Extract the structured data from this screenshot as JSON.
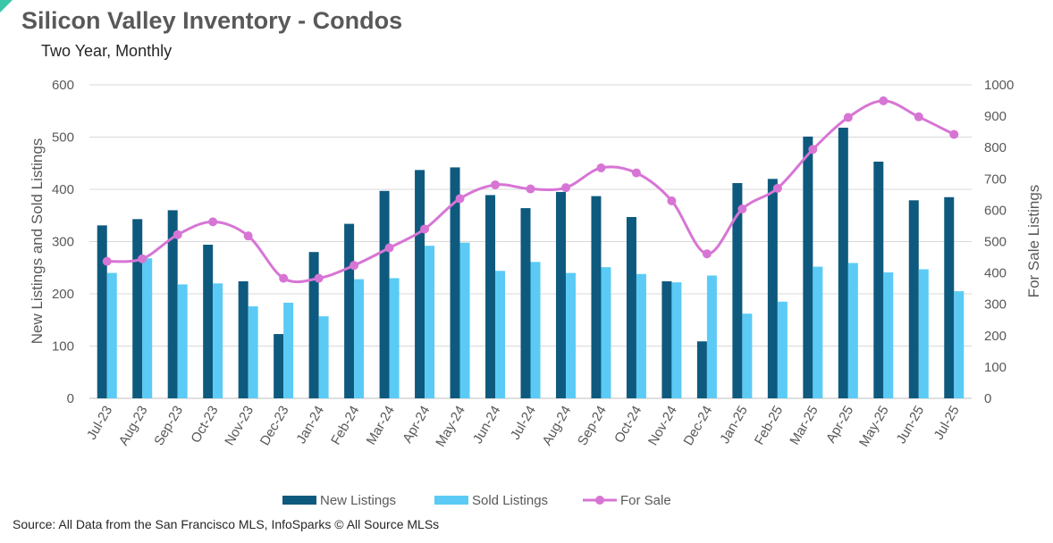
{
  "chart_data": {
    "type": "bar+line",
    "title": "Silicon Valley Inventory - Condos",
    "subtitle": "Two Year, Monthly",
    "source": "Source: All Data from the San Francisco MLS, InfoSparks © All Source MLSs",
    "categories": [
      "Jul-23",
      "Aug-23",
      "Sep-23",
      "Oct-23",
      "Nov-23",
      "Dec-23",
      "Jan-24",
      "Feb-24",
      "Mar-24",
      "Apr-24",
      "May-24",
      "Jun-24",
      "Jul-24",
      "Aug-24",
      "Sep-24",
      "Oct-24",
      "Nov-24",
      "Dec-24",
      "Jan-25",
      "Feb-25",
      "Mar-25",
      "Apr-25",
      "May-25",
      "Jun-25",
      "Jul-25"
    ],
    "y_left": {
      "label": "New Listings and Sold Listings",
      "range": [
        0,
        600
      ],
      "ticks": [
        "0",
        "100",
        "200",
        "300",
        "400",
        "500",
        "600"
      ]
    },
    "y_right": {
      "label": "For Sale Listings",
      "range": [
        0,
        1000
      ],
      "ticks": [
        "0",
        "100",
        "200",
        "300",
        "400",
        "500",
        "600",
        "700",
        "800",
        "900",
        "1000"
      ]
    },
    "grid": true,
    "legend_position": "bottom",
    "series": [
      {
        "name": "New Listings",
        "type": "bar",
        "axis": "left",
        "color": "#0e5a7e",
        "values": [
          331,
          343,
          360,
          294,
          224,
          123,
          280,
          334,
          397,
          437,
          442,
          389,
          364,
          395,
          387,
          347,
          224,
          109,
          412,
          420,
          501,
          518,
          453,
          379,
          385
        ]
      },
      {
        "name": "Sold Listings",
        "type": "bar",
        "axis": "left",
        "color": "#5bcbf5",
        "values": [
          240,
          268,
          218,
          220,
          176,
          183,
          157,
          228,
          230,
          292,
          298,
          244,
          261,
          240,
          251,
          238,
          222,
          235,
          162,
          185,
          252,
          259,
          241,
          247,
          205
        ]
      },
      {
        "name": "For Sale",
        "type": "line",
        "axis": "right",
        "color": "#d775d5",
        "values": [
          437,
          445,
          522,
          563,
          518,
          383,
          383,
          424,
          480,
          540,
          637,
          681,
          668,
          672,
          735,
          719,
          630,
          461,
          604,
          670,
          794,
          896,
          949,
          898,
          842
        ]
      }
    ]
  }
}
